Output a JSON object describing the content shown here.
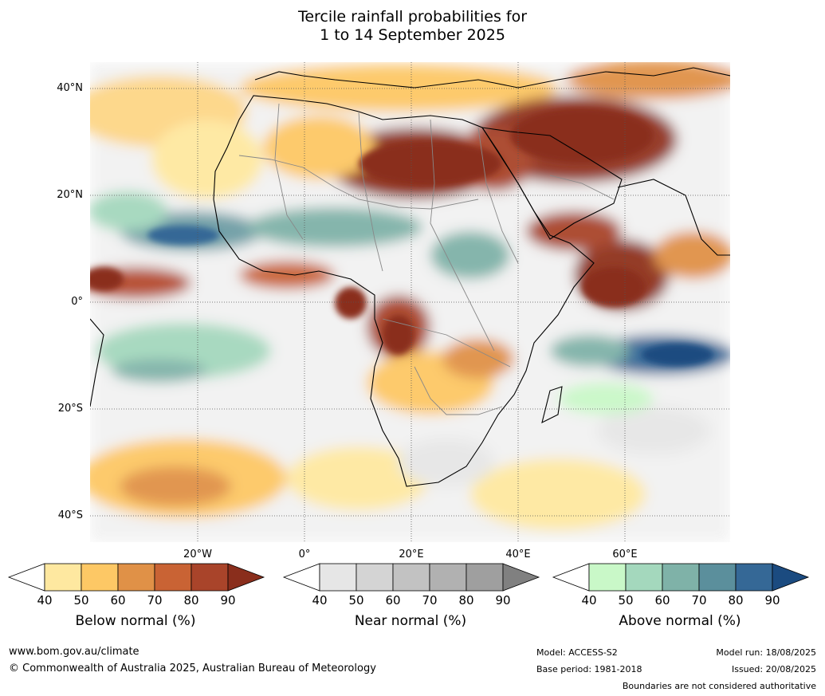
{
  "title": {
    "line1": "Tercile rainfall probabilities for",
    "line2": "1 to 14 September 2025"
  },
  "axes": {
    "lat_labels": [
      "40°N",
      "20°N",
      "0°",
      "20°S",
      "40°S"
    ],
    "lon_labels": [
      "20°W",
      "0°",
      "20°E",
      "40°E",
      "60°E"
    ]
  },
  "legend": {
    "below": {
      "title": "Below normal (%)",
      "ticks": [
        "40",
        "50",
        "60",
        "70",
        "80",
        "90"
      ],
      "colors": [
        "#ffffff",
        "#fee8a0",
        "#fdc865",
        "#e09147",
        "#c96334",
        "#a9442a",
        "#8a2e1c"
      ]
    },
    "near": {
      "title": "Near normal (%)",
      "ticks": [
        "40",
        "50",
        "60",
        "70",
        "80",
        "90"
      ],
      "colors": [
        "#ffffff",
        "#e6e6e6",
        "#d4d4d4",
        "#c2c2c2",
        "#b1b1b1",
        "#9f9f9f",
        "#808080"
      ]
    },
    "above": {
      "title": "Above normal (%)",
      "ticks": [
        "40",
        "50",
        "60",
        "70",
        "80",
        "90"
      ],
      "colors": [
        "#ffffff",
        "#c9f8c8",
        "#a4d8bd",
        "#7fb2a8",
        "#5b8f9c",
        "#356896",
        "#1b4b80"
      ]
    }
  },
  "footer": {
    "website": "www.bom.gov.au/climate",
    "copyright": "© Commonwealth of Australia 2025, Australian Bureau of Meteorology",
    "model": "Model: ACCESS-S2",
    "base_period": "Base period: 1981-2018",
    "model_run": "Model run: 18/08/2025",
    "issued": "Issued: 20/08/2025",
    "disclaimer": "Boundaries are not considered authoritative"
  }
}
